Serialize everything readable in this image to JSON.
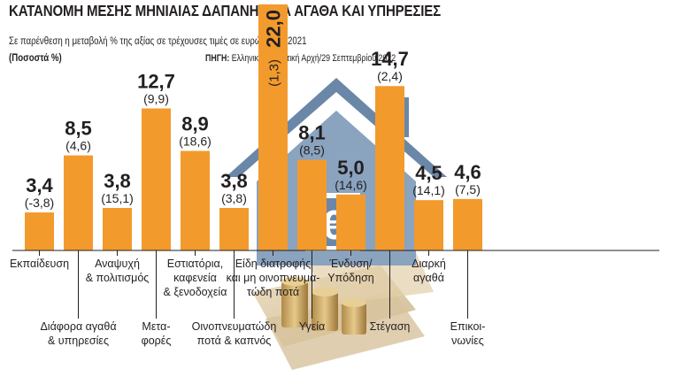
{
  "header": {
    "title": "ΚΑΤΑΝΟΜΗ ΜΕΣΗΣ ΜΗΝΙΑΙΑΣ ΔΑΠΑΝΗΣ ΓΙΑ ΑΓΑΘΑ ΚΑΙ ΥΠΗΡΕΣΙΕΣ",
    "subtitle": "Σε παρένθεση η μεταβολή % της αξίας σε τρέχουσες τιμές σε ευρώ, 2020/2021",
    "unit": "(Ποσοστά %)",
    "source_label": "ΠΗΓΗ:",
    "source_text": "Ελληνική Στατιστική Αρχή/29 Σεπτεμβρίου 2022"
  },
  "colors": {
    "bar": "#f39a2d",
    "house": "#6b87a8",
    "text": "#231f20"
  },
  "illustration": {
    "icon": "house-icon",
    "symbol": "€"
  },
  "chart_data": {
    "type": "bar",
    "title": "ΚΑΤΑΝΟΜΗ ΜΕΣΗΣ ΜΗΝΙΑΙΑΣ ΔΑΠΑΝΗΣ ΓΙΑ ΑΓΑΘΑ ΚΑΙ ΥΠΗΡΕΣΙΕΣ",
    "ylabel": "(Ποσοστά %)",
    "ylim": [
      0,
      22
    ],
    "grid": false,
    "legend": "none",
    "categories": [
      "Εκπαίδευση",
      "Διάφορα αγαθά & υπηρεσίες",
      "Αναψυχή & πολιτισμός",
      "Μεταφορές",
      "Εστιατόρια, καφενεία & ξενοδοχεία",
      "Οινοπνευματώδη ποτά & καπνός",
      "Είδη διατροφής και μη οινοπνευματώδη ποτά",
      "Υγεία",
      "Ένδυση/Υπόδηση",
      "Στέγαση",
      "Διαρκή αγαθά",
      "Επικοινωνίες"
    ],
    "category_lines": [
      [
        "Εκπαίδευση"
      ],
      [
        "Διάφορα αγαθά",
        "& υπηρεσίες"
      ],
      [
        "Αναψυχή",
        "& πολιτισμός"
      ],
      [
        "Μετα-",
        "φορές"
      ],
      [
        "Εστιατόρια,",
        "καφενεία",
        "& ξενοδοχεία"
      ],
      [
        "Οινοπνευματώδη",
        "ποτά & καπνός"
      ],
      [
        "Είδη διατροφής",
        "και μη οινοπνευμα-",
        "τώδη ποτά"
      ],
      [
        "Υγεία"
      ],
      [
        "Ένδυση/",
        "Υπόδηση"
      ],
      [
        "Στέγαση"
      ],
      [
        "Διαρκή",
        "αγαθά"
      ],
      [
        "Επικοι-",
        "νωνίες"
      ]
    ],
    "values": [
      3.4,
      8.5,
      3.8,
      12.7,
      8.9,
      3.8,
      22.0,
      8.1,
      5.0,
      14.7,
      4.5,
      4.6
    ],
    "value_labels": [
      "3,4",
      "8,5",
      "3,8",
      "12,7",
      "8,9",
      "3,8",
      "22,0",
      "8,1",
      "5,0",
      "14,7",
      "4,5",
      "4,6"
    ],
    "change_labels": [
      "(-3,8)",
      "(4,6)",
      "(15,1)",
      "(9,9)",
      "(18,6)",
      "(3,8)",
      "(1,3)",
      "(8,5)",
      "(14,6)",
      "(2,4)",
      "(14,1)",
      "(7,5)"
    ]
  }
}
